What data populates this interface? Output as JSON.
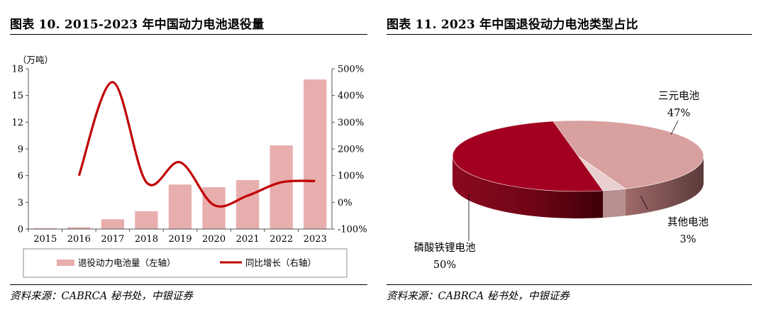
{
  "left": {
    "title": "图表 10. 2015-2023 年中国动力电池退役量",
    "source": "资料来源：CABRCA 秘书处，中银证券"
  },
  "right": {
    "title": "图表 11. 2023 年中国退役动力电池类型占比",
    "source": "资料来源：CABRCA 秘书处，中银证券"
  },
  "chart_data": [
    {
      "type": "bar",
      "categories": [
        "2015",
        "2016",
        "2017",
        "2018",
        "2019",
        "2020",
        "2021",
        "2022",
        "2023"
      ],
      "y_unit": "（万吨）",
      "y_ticks": [
        "18",
        "15",
        "12",
        "9",
        "6",
        "3",
        "0"
      ],
      "y2_ticks": [
        "500%",
        "400%",
        "300%",
        "200%",
        "100%",
        "0%",
        "-100%"
      ],
      "ylim": [
        0,
        18
      ],
      "y2lim": [
        -100,
        500
      ],
      "series": [
        {
          "name": "退役动力电池量（左轴）",
          "type": "bar",
          "axis": "left",
          "color": "#E8AEAE",
          "values": [
            0.1,
            0.2,
            1.1,
            2.0,
            5.0,
            4.7,
            5.5,
            9.4,
            16.8
          ]
        },
        {
          "name": "同比增长（右轴）",
          "type": "line",
          "axis": "right",
          "color": "#C00000",
          "values": [
            null,
            100,
            450,
            75,
            150,
            -10,
            25,
            75,
            80
          ]
        }
      ],
      "legend": "bottom"
    },
    {
      "type": "pie",
      "style": "3d",
      "slices": [
        {
          "label": "三元电池",
          "value": 47,
          "value_label": "47%",
          "color": "#D9A0A0"
        },
        {
          "label": "其他电池",
          "value": 3,
          "value_label": "3%",
          "color": "#EACFCF"
        },
        {
          "label": "磷酸铁锂电池",
          "value": 50,
          "value_label": "50%",
          "color": "#A30021"
        }
      ]
    }
  ]
}
